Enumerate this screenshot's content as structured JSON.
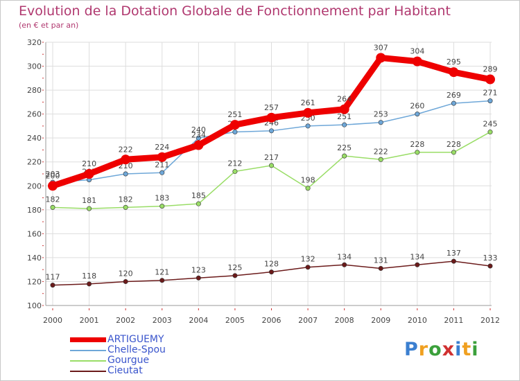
{
  "chart_data": {
    "type": "line",
    "title": "Evolution de la Dotation Globale de Fonctionnement par Habitant",
    "subtitle": "(en € et par an)",
    "xlabel": "",
    "ylabel": "",
    "categories": [
      "2000",
      "2001",
      "2002",
      "2003",
      "2004",
      "2005",
      "2006",
      "2007",
      "2008",
      "2009",
      "2010",
      "2011",
      "2012"
    ],
    "ylim": [
      100,
      320
    ],
    "yticks": [
      100,
      120,
      140,
      160,
      180,
      200,
      220,
      240,
      260,
      280,
      300,
      320
    ],
    "grid": true,
    "legend_position": "bottom-left",
    "series": [
      {
        "name": "Cieutat",
        "color": "#6b1a1a",
        "values": [
          117,
          118,
          120,
          121,
          123,
          125,
          128,
          132,
          134,
          131,
          134,
          137,
          133
        ]
      },
      {
        "name": "Gourgue",
        "color": "#99dd66",
        "values": [
          182,
          181,
          182,
          183,
          185,
          212,
          217,
          198,
          225,
          222,
          228,
          228,
          245
        ]
      },
      {
        "name": "Chelle-Spou",
        "color": "#6ea7d8",
        "values": [
          203,
          205,
          210,
          211,
          240,
          245,
          246,
          250,
          251,
          253,
          260,
          269,
          271
        ]
      },
      {
        "name": "ARTIGUEMY",
        "color": "#ee0000",
        "values": [
          200,
          210,
          222,
          224,
          234,
          251,
          257,
          261,
          264,
          307,
          304,
          295,
          289
        ]
      }
    ]
  },
  "legend": {
    "items": [
      {
        "label": "ARTIGUEMY",
        "color": "#ee0000"
      },
      {
        "label": "Chelle-Spou",
        "color": "#6ea7d8"
      },
      {
        "label": "Gourgue",
        "color": "#99dd66"
      },
      {
        "label": "Cieutat",
        "color": "#6b1a1a"
      }
    ]
  },
  "logo": {
    "text": "Proxiti"
  }
}
